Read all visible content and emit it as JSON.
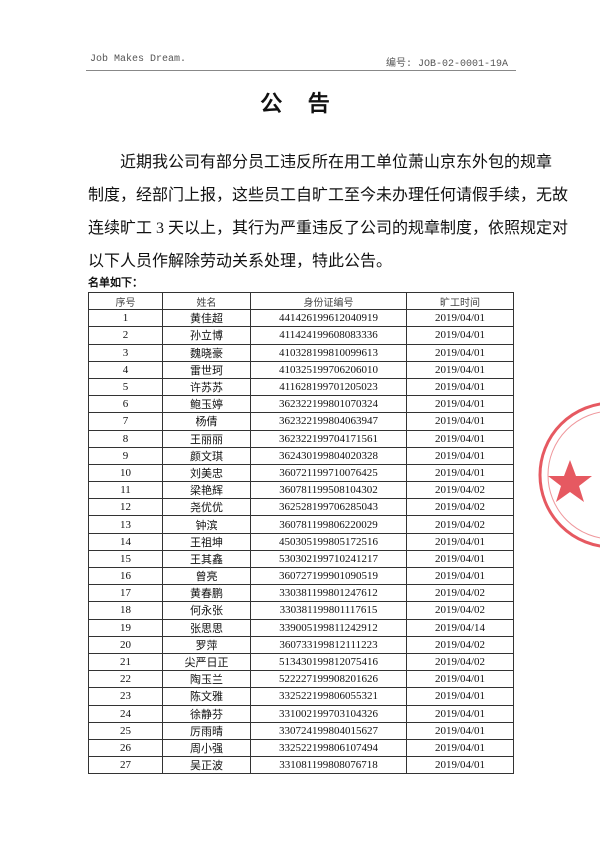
{
  "header": {
    "left": "Job Makes Dream.",
    "right": "编号: JOB-02-0001-19A"
  },
  "title": "公 告",
  "paragraph": [
    "近期我公司有部分员工违反所在用工单位萧山京东外包的规章",
    "制度，经部门上报，这些员工自旷工至今未办理任何请假手续，无故",
    "连续旷工 3 天以上，其行为严重违反了公司的规章制度，依照规定对",
    "以下人员作解除劳动关系处理，特此公告。"
  ],
  "list_label": "名单如下：",
  "table": {
    "columns": [
      "序号",
      "姓名",
      "身份证编号",
      "旷工时间"
    ],
    "rows": [
      [
        "1",
        "黄佳超",
        "441426199612040919",
        "2019/04/01"
      ],
      [
        "2",
        "孙立博",
        "411424199608083336",
        "2019/04/01"
      ],
      [
        "3",
        "魏晓豪",
        "410328199810099613",
        "2019/04/01"
      ],
      [
        "4",
        "雷世珂",
        "410325199706206010",
        "2019/04/01"
      ],
      [
        "5",
        "许苏苏",
        "411628199701205023",
        "2019/04/01"
      ],
      [
        "6",
        "鲍玉婷",
        "362322199801070324",
        "2019/04/01"
      ],
      [
        "7",
        "杨倩",
        "362322199804063947",
        "2019/04/01"
      ],
      [
        "8",
        "王丽丽",
        "362322199704171561",
        "2019/04/01"
      ],
      [
        "9",
        "颜文琪",
        "362430199804020328",
        "2019/04/01"
      ],
      [
        "10",
        "刘美忠",
        "360721199710076425",
        "2019/04/01"
      ],
      [
        "11",
        "梁艳辉",
        "360781199508104302",
        "2019/04/02"
      ],
      [
        "12",
        "尧优优",
        "362528199706285043",
        "2019/04/02"
      ],
      [
        "13",
        "钟滨",
        "360781199806220029",
        "2019/04/02"
      ],
      [
        "14",
        "王祖坤",
        "450305199805172516",
        "2019/04/01"
      ],
      [
        "15",
        "王其鑫",
        "530302199710241217",
        "2019/04/01"
      ],
      [
        "16",
        "曾亮",
        "360727199901090519",
        "2019/04/01"
      ],
      [
        "17",
        "黄春鹏",
        "330381199801247612",
        "2019/04/02"
      ],
      [
        "18",
        "何永张",
        "330381199801117615",
        "2019/04/02"
      ],
      [
        "19",
        "张思思",
        "339005199811242912",
        "2019/04/14"
      ],
      [
        "20",
        "罗萍",
        "360733199812111223",
        "2019/04/02"
      ],
      [
        "21",
        "尖严日正",
        "513430199812075416",
        "2019/04/02"
      ],
      [
        "22",
        "陶玉兰",
        "522227199908201626",
        "2019/04/01"
      ],
      [
        "23",
        "陈文雅",
        "332522199806055321",
        "2019/04/01"
      ],
      [
        "24",
        "徐静芬",
        "331002199703104326",
        "2019/04/01"
      ],
      [
        "25",
        "厉雨晴",
        "330724199804015627",
        "2019/04/01"
      ],
      [
        "26",
        "周小强",
        "332522199806107494",
        "2019/04/01"
      ],
      [
        "27",
        "吴正波",
        "331081199808076718",
        "2019/04/01"
      ]
    ]
  }
}
